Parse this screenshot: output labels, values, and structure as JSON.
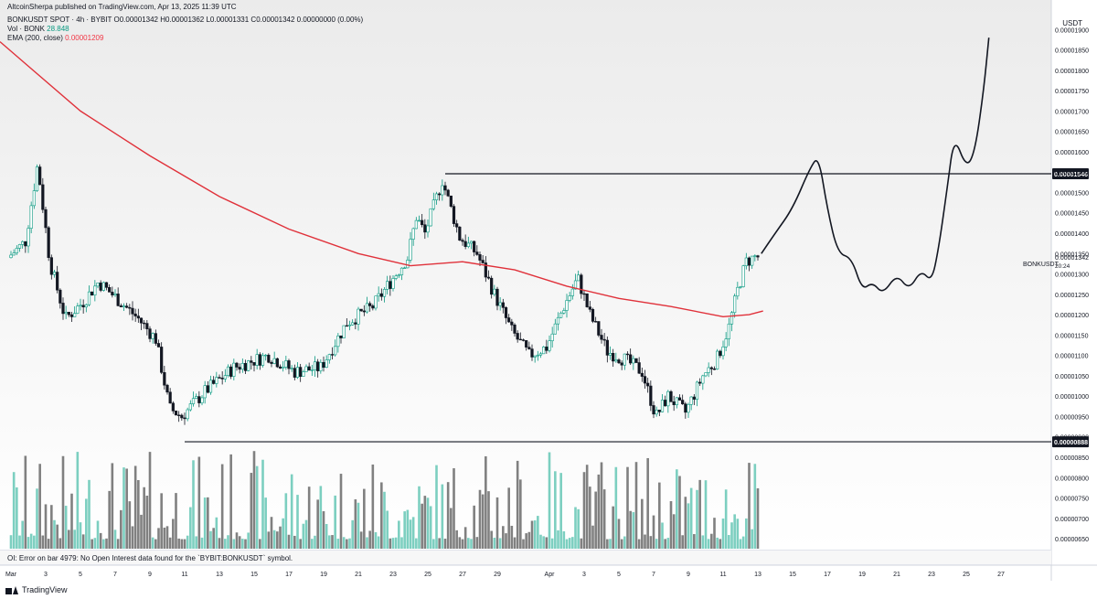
{
  "header": {
    "publisher": "AltcoinSherpa published on TradingView.com, Apr 13, 2025 11:39 UTC",
    "symbol_line": "BONKUSDT SPOT · 4h · BYBIT",
    "ohlc": "O0.00001342 H0.00001362 L0.00001331 C0.00001342 0.00000000 (0.00%)",
    "vol_label": "Vol · BONK",
    "vol_value": "28.848",
    "ema_label": "EMA (200, close)",
    "ema_value": "0.00001209"
  },
  "oi_message": "OI: Error on bar 4979: No Open Interest data found for the `BYBIT:BONKUSDT` symbol.",
  "footer": {
    "brand": "TradingView"
  },
  "price_axis": {
    "unit": "USDT",
    "symbol_tag": "BONKUSDT",
    "last_price": "0.00001342",
    "countdown": "20:24",
    "level_high": "0.00001546",
    "level_low": "0.00000888"
  },
  "colors": {
    "up": "#089981",
    "down": "#131722",
    "ema": "#e0313a",
    "vol_up": "#7ccfc0",
    "vol_down": "#808080",
    "background_top": "#ebebeb"
  },
  "chart_data": {
    "type": "candlestick",
    "timeframe": "4h",
    "ylim": [
      6.3e-06,
      1.95e-05
    ],
    "yticks": [
      "0.00000650",
      "0.00000700",
      "0.00000750",
      "0.00000800",
      "0.00000850",
      "0.00000900",
      "0.00000950",
      "0.00001000",
      "0.00001050",
      "0.00001100",
      "0.00001150",
      "0.00001200",
      "0.00001250",
      "0.00001300",
      "0.00001350",
      "0.00001400",
      "0.00001450",
      "0.00001500",
      "0.00001550",
      "0.00001600",
      "0.00001650",
      "0.00001700",
      "0.00001750",
      "0.00001800",
      "0.00001850",
      "0.00001900"
    ],
    "xticks": [
      "Mar",
      "3",
      "5",
      "7",
      "9",
      "11",
      "13",
      "15",
      "17",
      "19",
      "21",
      "23",
      "25",
      "27",
      "29",
      "Apr",
      "3",
      "5",
      "7",
      "9",
      "11",
      "13",
      "15",
      "17",
      "19",
      "21",
      "23",
      "25",
      "27"
    ],
    "xtick_days": [
      1,
      3,
      5,
      7,
      9,
      11,
      13,
      15,
      17,
      19,
      21,
      23,
      25,
      27,
      29,
      32,
      34,
      36,
      38,
      40,
      42,
      44,
      46,
      48,
      50,
      52,
      54,
      56,
      58
    ],
    "price_path": [
      {
        "d": 1.0,
        "p": 13.4
      },
      {
        "d": 2.0,
        "p": 13.8
      },
      {
        "d": 2.7,
        "p": 15.7
      },
      {
        "d": 3.4,
        "p": 13.3
      },
      {
        "d": 4.3,
        "p": 11.9
      },
      {
        "d": 5.3,
        "p": 12.3
      },
      {
        "d": 6.2,
        "p": 12.8
      },
      {
        "d": 7.0,
        "p": 12.5
      },
      {
        "d": 8.5,
        "p": 11.9
      },
      {
        "d": 9.5,
        "p": 11.4
      },
      {
        "d": 10.3,
        "p": 9.7
      },
      {
        "d": 11.0,
        "p": 9.5
      },
      {
        "d": 12.3,
        "p": 10.1
      },
      {
        "d": 14.0,
        "p": 10.7
      },
      {
        "d": 16.0,
        "p": 11.0
      },
      {
        "d": 17.5,
        "p": 10.6
      },
      {
        "d": 19.0,
        "p": 10.7
      },
      {
        "d": 20.5,
        "p": 11.8
      },
      {
        "d": 22.0,
        "p": 12.2
      },
      {
        "d": 23.0,
        "p": 12.8
      },
      {
        "d": 24.0,
        "p": 13.4
      },
      {
        "d": 24.5,
        "p": 14.4
      },
      {
        "d": 25.0,
        "p": 14.0
      },
      {
        "d": 26.0,
        "p": 15.3
      },
      {
        "d": 27.0,
        "p": 13.9
      },
      {
        "d": 28.0,
        "p": 13.5
      },
      {
        "d": 29.0,
        "p": 12.5
      },
      {
        "d": 30.0,
        "p": 11.6
      },
      {
        "d": 31.0,
        "p": 11.0
      },
      {
        "d": 32.0,
        "p": 11.2
      },
      {
        "d": 33.0,
        "p": 12.2
      },
      {
        "d": 33.8,
        "p": 12.9
      },
      {
        "d": 34.5,
        "p": 12.0
      },
      {
        "d": 35.5,
        "p": 11.1
      },
      {
        "d": 36.5,
        "p": 10.9
      },
      {
        "d": 37.5,
        "p": 10.6
      },
      {
        "d": 38.3,
        "p": 9.5
      },
      {
        "d": 39.0,
        "p": 10.0
      },
      {
        "d": 40.0,
        "p": 9.6
      },
      {
        "d": 41.0,
        "p": 10.5
      },
      {
        "d": 41.8,
        "p": 10.9
      },
      {
        "d": 42.5,
        "p": 11.7
      },
      {
        "d": 43.0,
        "p": 12.6
      },
      {
        "d": 43.5,
        "p": 13.3
      },
      {
        "d": 44.0,
        "p": 13.42
      }
    ],
    "ema200": [
      {
        "d": 0.0,
        "p": 18.7
      },
      {
        "d": 2.0,
        "p": 18.1
      },
      {
        "d": 5.0,
        "p": 17.0
      },
      {
        "d": 9.0,
        "p": 15.9
      },
      {
        "d": 13.0,
        "p": 14.9
      },
      {
        "d": 17.0,
        "p": 14.1
      },
      {
        "d": 21.0,
        "p": 13.5
      },
      {
        "d": 24.0,
        "p": 13.2
      },
      {
        "d": 27.0,
        "p": 13.3
      },
      {
        "d": 30.0,
        "p": 13.1
      },
      {
        "d": 33.0,
        "p": 12.7
      },
      {
        "d": 36.0,
        "p": 12.4
      },
      {
        "d": 39.0,
        "p": 12.2
      },
      {
        "d": 42.0,
        "p": 11.95
      },
      {
        "d": 43.5,
        "p": 12.0
      },
      {
        "d": 44.3,
        "p": 12.09
      }
    ],
    "projection": [
      {
        "d": 44.2,
        "p": 13.5
      },
      {
        "d": 45.0,
        "p": 14.0
      },
      {
        "d": 46.0,
        "p": 14.6
      },
      {
        "d": 47.0,
        "p": 15.6
      },
      {
        "d": 47.5,
        "p": 15.9
      },
      {
        "d": 48.0,
        "p": 14.6
      },
      {
        "d": 48.6,
        "p": 13.5
      },
      {
        "d": 49.4,
        "p": 13.4
      },
      {
        "d": 50.0,
        "p": 12.6
      },
      {
        "d": 50.6,
        "p": 12.8
      },
      {
        "d": 51.2,
        "p": 12.5
      },
      {
        "d": 52.0,
        "p": 13.0
      },
      {
        "d": 52.7,
        "p": 12.6
      },
      {
        "d": 53.4,
        "p": 13.1
      },
      {
        "d": 54.0,
        "p": 12.8
      },
      {
        "d": 54.4,
        "p": 13.6
      },
      {
        "d": 54.9,
        "p": 15.1
      },
      {
        "d": 55.3,
        "p": 16.4
      },
      {
        "d": 56.0,
        "p": 15.6
      },
      {
        "d": 56.5,
        "p": 16.0
      },
      {
        "d": 57.0,
        "p": 17.5
      },
      {
        "d": 57.3,
        "p": 18.8
      }
    ],
    "levels": [
      {
        "price": 1.546e-05,
        "from_day": 26.0
      },
      {
        "price": 8.88e-06,
        "from_day": 11.0
      }
    ],
    "volume_note": "volume histogram bars along bottom, teal for up candles, grey for down candles"
  }
}
